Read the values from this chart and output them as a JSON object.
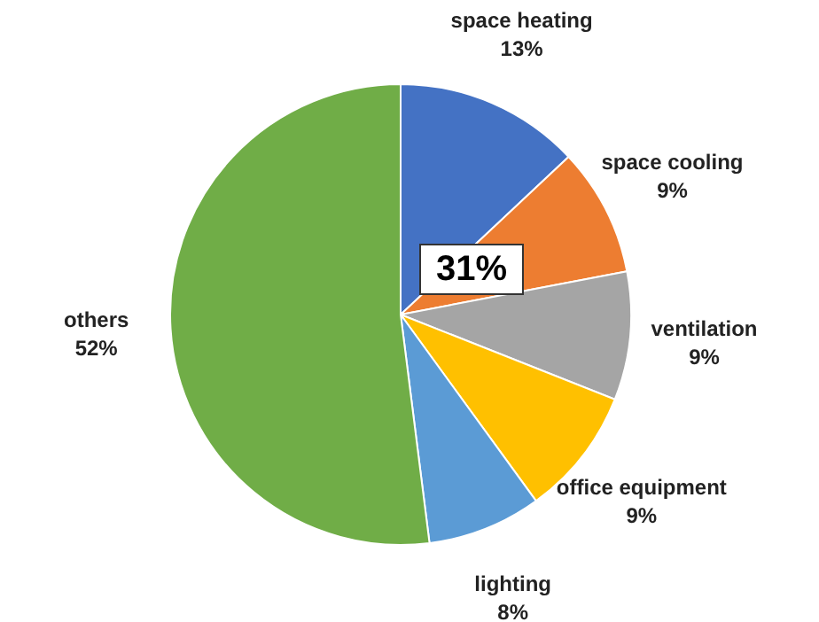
{
  "chart_data": {
    "type": "pie",
    "categories": [
      "space heating",
      "space cooling",
      "ventilation",
      "office equipment",
      "lighting",
      "others"
    ],
    "values": [
      13,
      9,
      9,
      9,
      8,
      52
    ],
    "value_labels": [
      "13%",
      "9%",
      "9%",
      "9%",
      "8%",
      "52%"
    ],
    "colors": [
      "#4472c4",
      "#ed7d31",
      "#a5a5a5",
      "#ffc000",
      "#5b9bd5",
      "#70ad47"
    ],
    "annotations": [
      "31%"
    ],
    "legend": false
  }
}
